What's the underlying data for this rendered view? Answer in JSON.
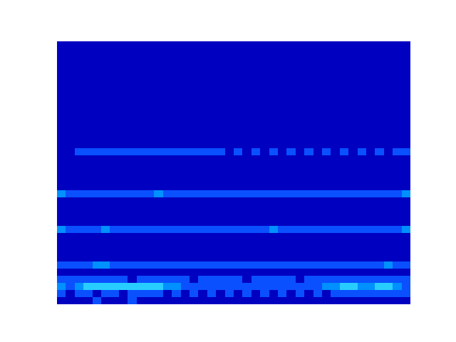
{
  "chart_data": {
    "type": "contour",
    "tick_labels": false,
    "levels": [
      0,
      1,
      2,
      3,
      4
    ],
    "colors": [
      "#0000c0",
      "#0a50ff",
      "#0090ff",
      "#28cdff"
    ],
    "cells": [
      [
        0,
        0,
        0,
        0,
        0,
        0,
        0,
        0,
        0,
        0,
        0,
        0,
        0,
        0,
        0,
        0,
        0,
        0,
        0,
        0,
        0,
        0,
        0,
        0,
        0,
        0,
        0,
        0,
        0,
        0,
        0,
        0,
        0,
        0,
        0,
        0,
        0,
        0,
        0,
        0
      ],
      [
        0,
        0,
        0,
        0,
        0,
        0,
        0,
        0,
        0,
        0,
        0,
        0,
        0,
        0,
        0,
        0,
        0,
        0,
        0,
        0,
        0,
        0,
        0,
        0,
        0,
        0,
        0,
        0,
        0,
        0,
        0,
        0,
        0,
        0,
        0,
        0,
        0,
        0,
        0,
        0
      ],
      [
        0,
        0,
        0,
        0,
        0,
        0,
        0,
        0,
        0,
        0,
        0,
        0,
        0,
        0,
        0,
        0,
        0,
        0,
        0,
        0,
        0,
        0,
        0,
        0,
        0,
        0,
        0,
        0,
        0,
        0,
        0,
        0,
        0,
        0,
        0,
        0,
        0,
        0,
        0,
        0
      ],
      [
        0,
        0,
        0,
        0,
        0,
        0,
        0,
        0,
        0,
        0,
        0,
        0,
        0,
        0,
        0,
        0,
        0,
        0,
        0,
        0,
        0,
        0,
        0,
        0,
        0,
        0,
        0,
        0,
        0,
        0,
        0,
        0,
        0,
        0,
        0,
        0,
        0,
        0,
        0,
        0
      ],
      [
        0,
        0,
        0,
        0,
        0,
        0,
        0,
        0,
        0,
        0,
        0,
        0,
        0,
        0,
        0,
        0,
        0,
        0,
        0,
        0,
        0,
        0,
        0,
        0,
        0,
        0,
        0,
        0,
        0,
        0,
        0,
        0,
        0,
        0,
        0,
        0,
        0,
        0,
        0,
        0
      ],
      [
        0,
        0,
        0,
        0,
        0,
        0,
        0,
        0,
        0,
        0,
        0,
        0,
        0,
        0,
        0,
        0,
        0,
        0,
        0,
        0,
        0,
        0,
        0,
        0,
        0,
        0,
        0,
        0,
        0,
        0,
        0,
        0,
        0,
        0,
        0,
        0,
        0,
        0,
        0,
        0
      ],
      [
        0,
        0,
        0,
        0,
        0,
        0,
        0,
        0,
        0,
        0,
        0,
        0,
        0,
        0,
        0,
        0,
        0,
        0,
        0,
        0,
        0,
        0,
        0,
        0,
        0,
        0,
        0,
        0,
        0,
        0,
        0,
        0,
        0,
        0,
        0,
        0,
        0,
        0,
        0,
        0
      ],
      [
        0,
        0,
        0,
        0,
        0,
        0,
        0,
        0,
        0,
        0,
        0,
        0,
        0,
        0,
        0,
        0,
        0,
        0,
        0,
        0,
        0,
        0,
        0,
        0,
        0,
        0,
        0,
        0,
        0,
        0,
        0,
        0,
        0,
        0,
        0,
        0,
        0,
        0,
        0,
        0
      ],
      [
        0,
        0,
        0,
        0,
        0,
        0,
        0,
        0,
        0,
        0,
        0,
        0,
        0,
        0,
        0,
        0,
        0,
        0,
        0,
        0,
        0,
        0,
        0,
        0,
        0,
        0,
        0,
        0,
        0,
        0,
        0,
        0,
        0,
        0,
        0,
        0,
        0,
        0,
        0,
        0
      ],
      [
        0,
        0,
        0,
        0,
        0,
        0,
        0,
        0,
        0,
        0,
        0,
        0,
        0,
        0,
        0,
        0,
        0,
        0,
        0,
        0,
        0,
        0,
        0,
        0,
        0,
        0,
        0,
        0,
        0,
        0,
        0,
        0,
        0,
        0,
        0,
        0,
        0,
        0,
        0,
        0
      ],
      [
        0,
        0,
        0,
        0,
        0,
        0,
        0,
        0,
        0,
        0,
        0,
        0,
        0,
        0,
        0,
        0,
        0,
        0,
        0,
        0,
        0,
        0,
        0,
        0,
        0,
        0,
        0,
        0,
        0,
        0,
        0,
        0,
        0,
        0,
        0,
        0,
        0,
        0,
        0,
        0
      ],
      [
        0,
        0,
        0,
        0,
        0,
        0,
        0,
        0,
        0,
        0,
        0,
        0,
        0,
        0,
        0,
        0,
        0,
        0,
        0,
        0,
        0,
        0,
        0,
        0,
        0,
        0,
        0,
        0,
        0,
        0,
        0,
        0,
        0,
        0,
        0,
        0,
        0,
        0,
        0,
        0
      ],
      [
        0,
        0,
        0,
        0,
        0,
        0,
        0,
        0,
        0,
        0,
        0,
        0,
        0,
        0,
        0,
        0,
        0,
        0,
        0,
        0,
        0,
        0,
        0,
        0,
        0,
        0,
        0,
        0,
        0,
        0,
        0,
        0,
        0,
        0,
        0,
        0,
        0,
        0,
        0,
        0
      ],
      [
        0,
        0,
        0,
        0,
        0,
        0,
        0,
        0,
        0,
        0,
        0,
        0,
        0,
        0,
        0,
        0,
        0,
        0,
        0,
        0,
        0,
        0,
        0,
        0,
        0,
        0,
        0,
        0,
        0,
        0,
        0,
        0,
        0,
        0,
        0,
        0,
        0,
        0,
        0,
        0
      ],
      [
        0,
        0,
        0,
        0,
        0,
        0,
        0,
        0,
        0,
        0,
        0,
        0,
        0,
        0,
        0,
        0,
        0,
        0,
        0,
        0,
        0,
        0,
        0,
        0,
        0,
        0,
        0,
        0,
        0,
        0,
        0,
        0,
        0,
        0,
        0,
        0,
        0,
        0,
        0,
        0
      ],
      [
        0,
        0,
        1,
        1,
        1,
        1,
        1,
        1,
        1,
        1,
        1,
        1,
        1,
        1,
        1,
        1,
        1,
        1,
        1,
        0,
        1,
        0,
        1,
        0,
        1,
        0,
        1,
        0,
        1,
        0,
        1,
        0,
        1,
        0,
        1,
        0,
        1,
        0,
        1,
        1
      ],
      [
        0,
        0,
        0,
        0,
        0,
        0,
        0,
        0,
        0,
        0,
        0,
        0,
        0,
        0,
        0,
        0,
        0,
        0,
        0,
        0,
        0,
        0,
        0,
        0,
        0,
        0,
        0,
        0,
        0,
        0,
        0,
        0,
        0,
        0,
        0,
        0,
        0,
        0,
        0,
        0
      ],
      [
        0,
        0,
        0,
        0,
        0,
        0,
        0,
        0,
        0,
        0,
        0,
        0,
        0,
        0,
        0,
        0,
        0,
        0,
        0,
        0,
        0,
        0,
        0,
        0,
        0,
        0,
        0,
        0,
        0,
        0,
        0,
        0,
        0,
        0,
        0,
        0,
        0,
        0,
        0,
        0
      ],
      [
        0,
        0,
        0,
        0,
        0,
        0,
        0,
        0,
        0,
        0,
        0,
        0,
        0,
        0,
        0,
        0,
        0,
        0,
        0,
        0,
        0,
        0,
        0,
        0,
        0,
        0,
        0,
        0,
        0,
        0,
        0,
        0,
        0,
        0,
        0,
        0,
        0,
        0,
        0,
        0
      ],
      [
        0,
        0,
        0,
        0,
        0,
        0,
        0,
        0,
        0,
        0,
        0,
        0,
        0,
        0,
        0,
        0,
        0,
        0,
        0,
        0,
        0,
        0,
        0,
        0,
        0,
        0,
        0,
        0,
        0,
        0,
        0,
        0,
        0,
        0,
        0,
        0,
        0,
        0,
        0,
        0
      ],
      [
        0,
        0,
        0,
        0,
        0,
        0,
        0,
        0,
        0,
        0,
        0,
        0,
        0,
        0,
        0,
        0,
        0,
        0,
        0,
        0,
        0,
        0,
        0,
        0,
        0,
        0,
        0,
        0,
        0,
        0,
        0,
        0,
        0,
        0,
        0,
        0,
        0,
        0,
        0,
        0
      ],
      [
        2,
        1,
        1,
        1,
        1,
        1,
        1,
        1,
        1,
        1,
        1,
        2,
        1,
        1,
        1,
        1,
        1,
        1,
        1,
        1,
        1,
        1,
        1,
        1,
        1,
        1,
        1,
        1,
        1,
        1,
        1,
        1,
        1,
        1,
        1,
        1,
        1,
        1,
        1,
        2
      ],
      [
        0,
        0,
        0,
        0,
        0,
        0,
        0,
        0,
        0,
        0,
        0,
        0,
        0,
        0,
        0,
        0,
        0,
        0,
        0,
        0,
        0,
        0,
        0,
        0,
        0,
        0,
        0,
        0,
        0,
        0,
        0,
        0,
        0,
        0,
        0,
        0,
        0,
        0,
        0,
        0
      ],
      [
        0,
        0,
        0,
        0,
        0,
        0,
        0,
        0,
        0,
        0,
        0,
        0,
        0,
        0,
        0,
        0,
        0,
        0,
        0,
        0,
        0,
        0,
        0,
        0,
        0,
        0,
        0,
        0,
        0,
        0,
        0,
        0,
        0,
        0,
        0,
        0,
        0,
        0,
        0,
        0
      ],
      [
        0,
        0,
        0,
        0,
        0,
        0,
        0,
        0,
        0,
        0,
        0,
        0,
        0,
        0,
        0,
        0,
        0,
        0,
        0,
        0,
        0,
        0,
        0,
        0,
        0,
        0,
        0,
        0,
        0,
        0,
        0,
        0,
        0,
        0,
        0,
        0,
        0,
        0,
        0,
        0
      ],
      [
        0,
        0,
        0,
        0,
        0,
        0,
        0,
        0,
        0,
        0,
        0,
        0,
        0,
        0,
        0,
        0,
        0,
        0,
        0,
        0,
        0,
        0,
        0,
        0,
        0,
        0,
        0,
        0,
        0,
        0,
        0,
        0,
        0,
        0,
        0,
        0,
        0,
        0,
        0,
        0
      ],
      [
        2,
        1,
        1,
        1,
        1,
        2,
        1,
        1,
        1,
        1,
        1,
        1,
        1,
        1,
        1,
        1,
        1,
        1,
        1,
        1,
        1,
        1,
        1,
        1,
        2,
        1,
        1,
        1,
        1,
        1,
        1,
        1,
        1,
        1,
        1,
        1,
        1,
        1,
        1,
        2
      ],
      [
        0,
        0,
        0,
        0,
        0,
        0,
        0,
        0,
        0,
        0,
        0,
        0,
        0,
        0,
        0,
        0,
        0,
        0,
        0,
        0,
        0,
        0,
        0,
        0,
        0,
        0,
        0,
        0,
        0,
        0,
        0,
        0,
        0,
        0,
        0,
        0,
        0,
        0,
        0,
        0
      ],
      [
        0,
        0,
        0,
        0,
        0,
        0,
        0,
        0,
        0,
        0,
        0,
        0,
        0,
        0,
        0,
        0,
        0,
        0,
        0,
        0,
        0,
        0,
        0,
        0,
        0,
        0,
        0,
        0,
        0,
        0,
        0,
        0,
        0,
        0,
        0,
        0,
        0,
        0,
        0,
        0
      ],
      [
        0,
        0,
        0,
        0,
        0,
        0,
        0,
        0,
        0,
        0,
        0,
        0,
        0,
        0,
        0,
        0,
        0,
        0,
        0,
        0,
        0,
        0,
        0,
        0,
        0,
        0,
        0,
        0,
        0,
        0,
        0,
        0,
        0,
        0,
        0,
        0,
        0,
        0,
        0,
        0
      ],
      [
        0,
        0,
        0,
        0,
        0,
        0,
        0,
        0,
        0,
        0,
        0,
        0,
        0,
        0,
        0,
        0,
        0,
        0,
        0,
        0,
        0,
        0,
        0,
        0,
        0,
        0,
        0,
        0,
        0,
        0,
        0,
        0,
        0,
        0,
        0,
        0,
        0,
        0,
        0,
        0
      ],
      [
        1,
        1,
        1,
        1,
        2,
        2,
        1,
        1,
        1,
        1,
        1,
        1,
        1,
        1,
        1,
        1,
        1,
        1,
        1,
        1,
        1,
        1,
        1,
        1,
        1,
        1,
        1,
        1,
        1,
        1,
        1,
        1,
        1,
        1,
        1,
        1,
        1,
        2,
        1,
        1
      ],
      [
        0,
        0,
        0,
        0,
        0,
        0,
        0,
        0,
        0,
        0,
        0,
        0,
        0,
        0,
        0,
        0,
        0,
        0,
        0,
        0,
        0,
        0,
        0,
        0,
        0,
        0,
        0,
        0,
        0,
        0,
        0,
        0,
        0,
        0,
        0,
        0,
        0,
        0,
        0,
        0
      ],
      [
        1,
        1,
        1,
        1,
        1,
        1,
        1,
        1,
        0,
        1,
        1,
        1,
        1,
        1,
        1,
        0,
        1,
        1,
        1,
        1,
        1,
        0,
        1,
        1,
        1,
        1,
        1,
        0,
        1,
        1,
        1,
        1,
        1,
        1,
        1,
        1,
        1,
        1,
        1,
        1
      ],
      [
        2,
        1,
        2,
        3,
        3,
        3,
        3,
        3,
        3,
        3,
        3,
        3,
        2,
        2,
        1,
        1,
        1,
        1,
        1,
        1,
        1,
        1,
        1,
        1,
        1,
        1,
        1,
        1,
        1,
        1,
        2,
        2,
        3,
        3,
        2,
        2,
        3,
        3,
        2,
        1
      ],
      [
        1,
        0,
        1,
        1,
        0,
        1,
        1,
        0,
        1,
        1,
        1,
        1,
        0,
        1,
        0,
        1,
        0,
        1,
        0,
        1,
        0,
        1,
        0,
        1,
        0,
        1,
        0,
        1,
        0,
        1,
        0,
        1,
        1,
        1,
        1,
        1,
        1,
        1,
        1,
        1
      ],
      [
        0,
        0,
        0,
        0,
        1,
        0,
        0,
        0,
        1,
        0,
        0,
        0,
        0,
        0,
        0,
        0,
        0,
        0,
        0,
        0,
        0,
        0,
        0,
        0,
        0,
        0,
        0,
        0,
        0,
        0,
        0,
        0,
        0,
        0,
        0,
        0,
        0,
        0,
        0,
        0
      ]
    ]
  }
}
